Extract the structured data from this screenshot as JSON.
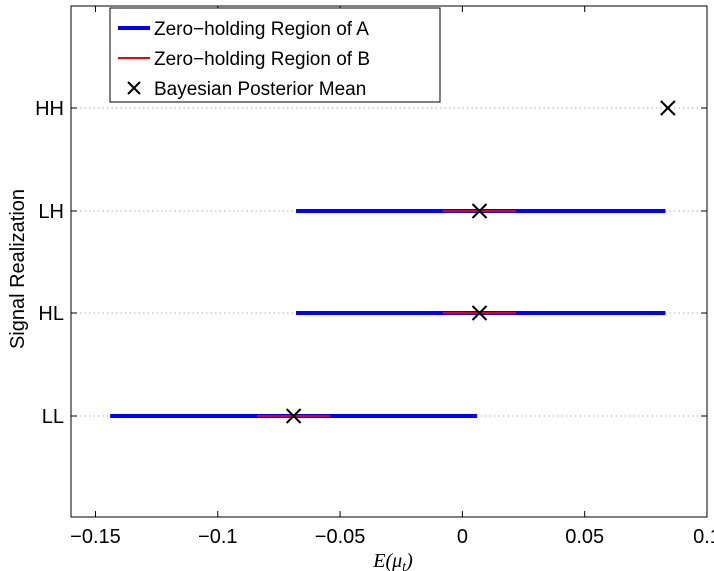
{
  "chart_data": {
    "type": "interval-scatter",
    "title": "",
    "xlabel": "E(μ_t)",
    "xlabel_parts": {
      "main": "E(μ",
      "sub": "t",
      "close": ")"
    },
    "ylabel": "Signal Realization",
    "xlim": [
      -0.16,
      0.1
    ],
    "xticks": [
      -0.15,
      -0.1,
      -0.05,
      0,
      0.05,
      0.1
    ],
    "xtick_labels": [
      "−0.15",
      "−0.1",
      "−0.05",
      "0",
      "0.05",
      "0.1"
    ],
    "categories": [
      "LL",
      "HL",
      "LH",
      "HH"
    ],
    "grid": "horizontal-dotted",
    "legend_position": "top-left",
    "colors": {
      "region_a": "#0000ff",
      "region_b": "#ff0000",
      "mean": "#000000",
      "grid": "#b0b0b0"
    },
    "legend": [
      {
        "key": "region_a",
        "label": "Zero−holding Region of A"
      },
      {
        "key": "region_b",
        "label": "Zero−holding Region of B"
      },
      {
        "key": "mean",
        "label": "Bayesian Posterior Mean"
      }
    ],
    "series": [
      {
        "key": "region_a",
        "type": "interval",
        "data": [
          {
            "category": "LL",
            "x_start": -0.144,
            "x_end": 0.006
          },
          {
            "category": "HL",
            "x_start": -0.068,
            "x_end": 0.083
          },
          {
            "category": "LH",
            "x_start": -0.068,
            "x_end": 0.083
          },
          {
            "category": "HH",
            "x_start": null,
            "x_end": null
          }
        ]
      },
      {
        "key": "region_b",
        "type": "interval",
        "data": [
          {
            "category": "LL",
            "x_start": -0.084,
            "x_end": -0.054
          },
          {
            "category": "HL",
            "x_start": -0.008,
            "x_end": 0.022
          },
          {
            "category": "LH",
            "x_start": -0.008,
            "x_end": 0.022
          },
          {
            "category": "HH",
            "x_start": null,
            "x_end": null
          }
        ]
      },
      {
        "key": "mean",
        "type": "scatter",
        "marker": "x",
        "data": [
          {
            "category": "LL",
            "x": -0.069
          },
          {
            "category": "HL",
            "x": 0.007
          },
          {
            "category": "LH",
            "x": 0.007
          },
          {
            "category": "HH",
            "x": 0.084
          }
        ]
      }
    ]
  }
}
